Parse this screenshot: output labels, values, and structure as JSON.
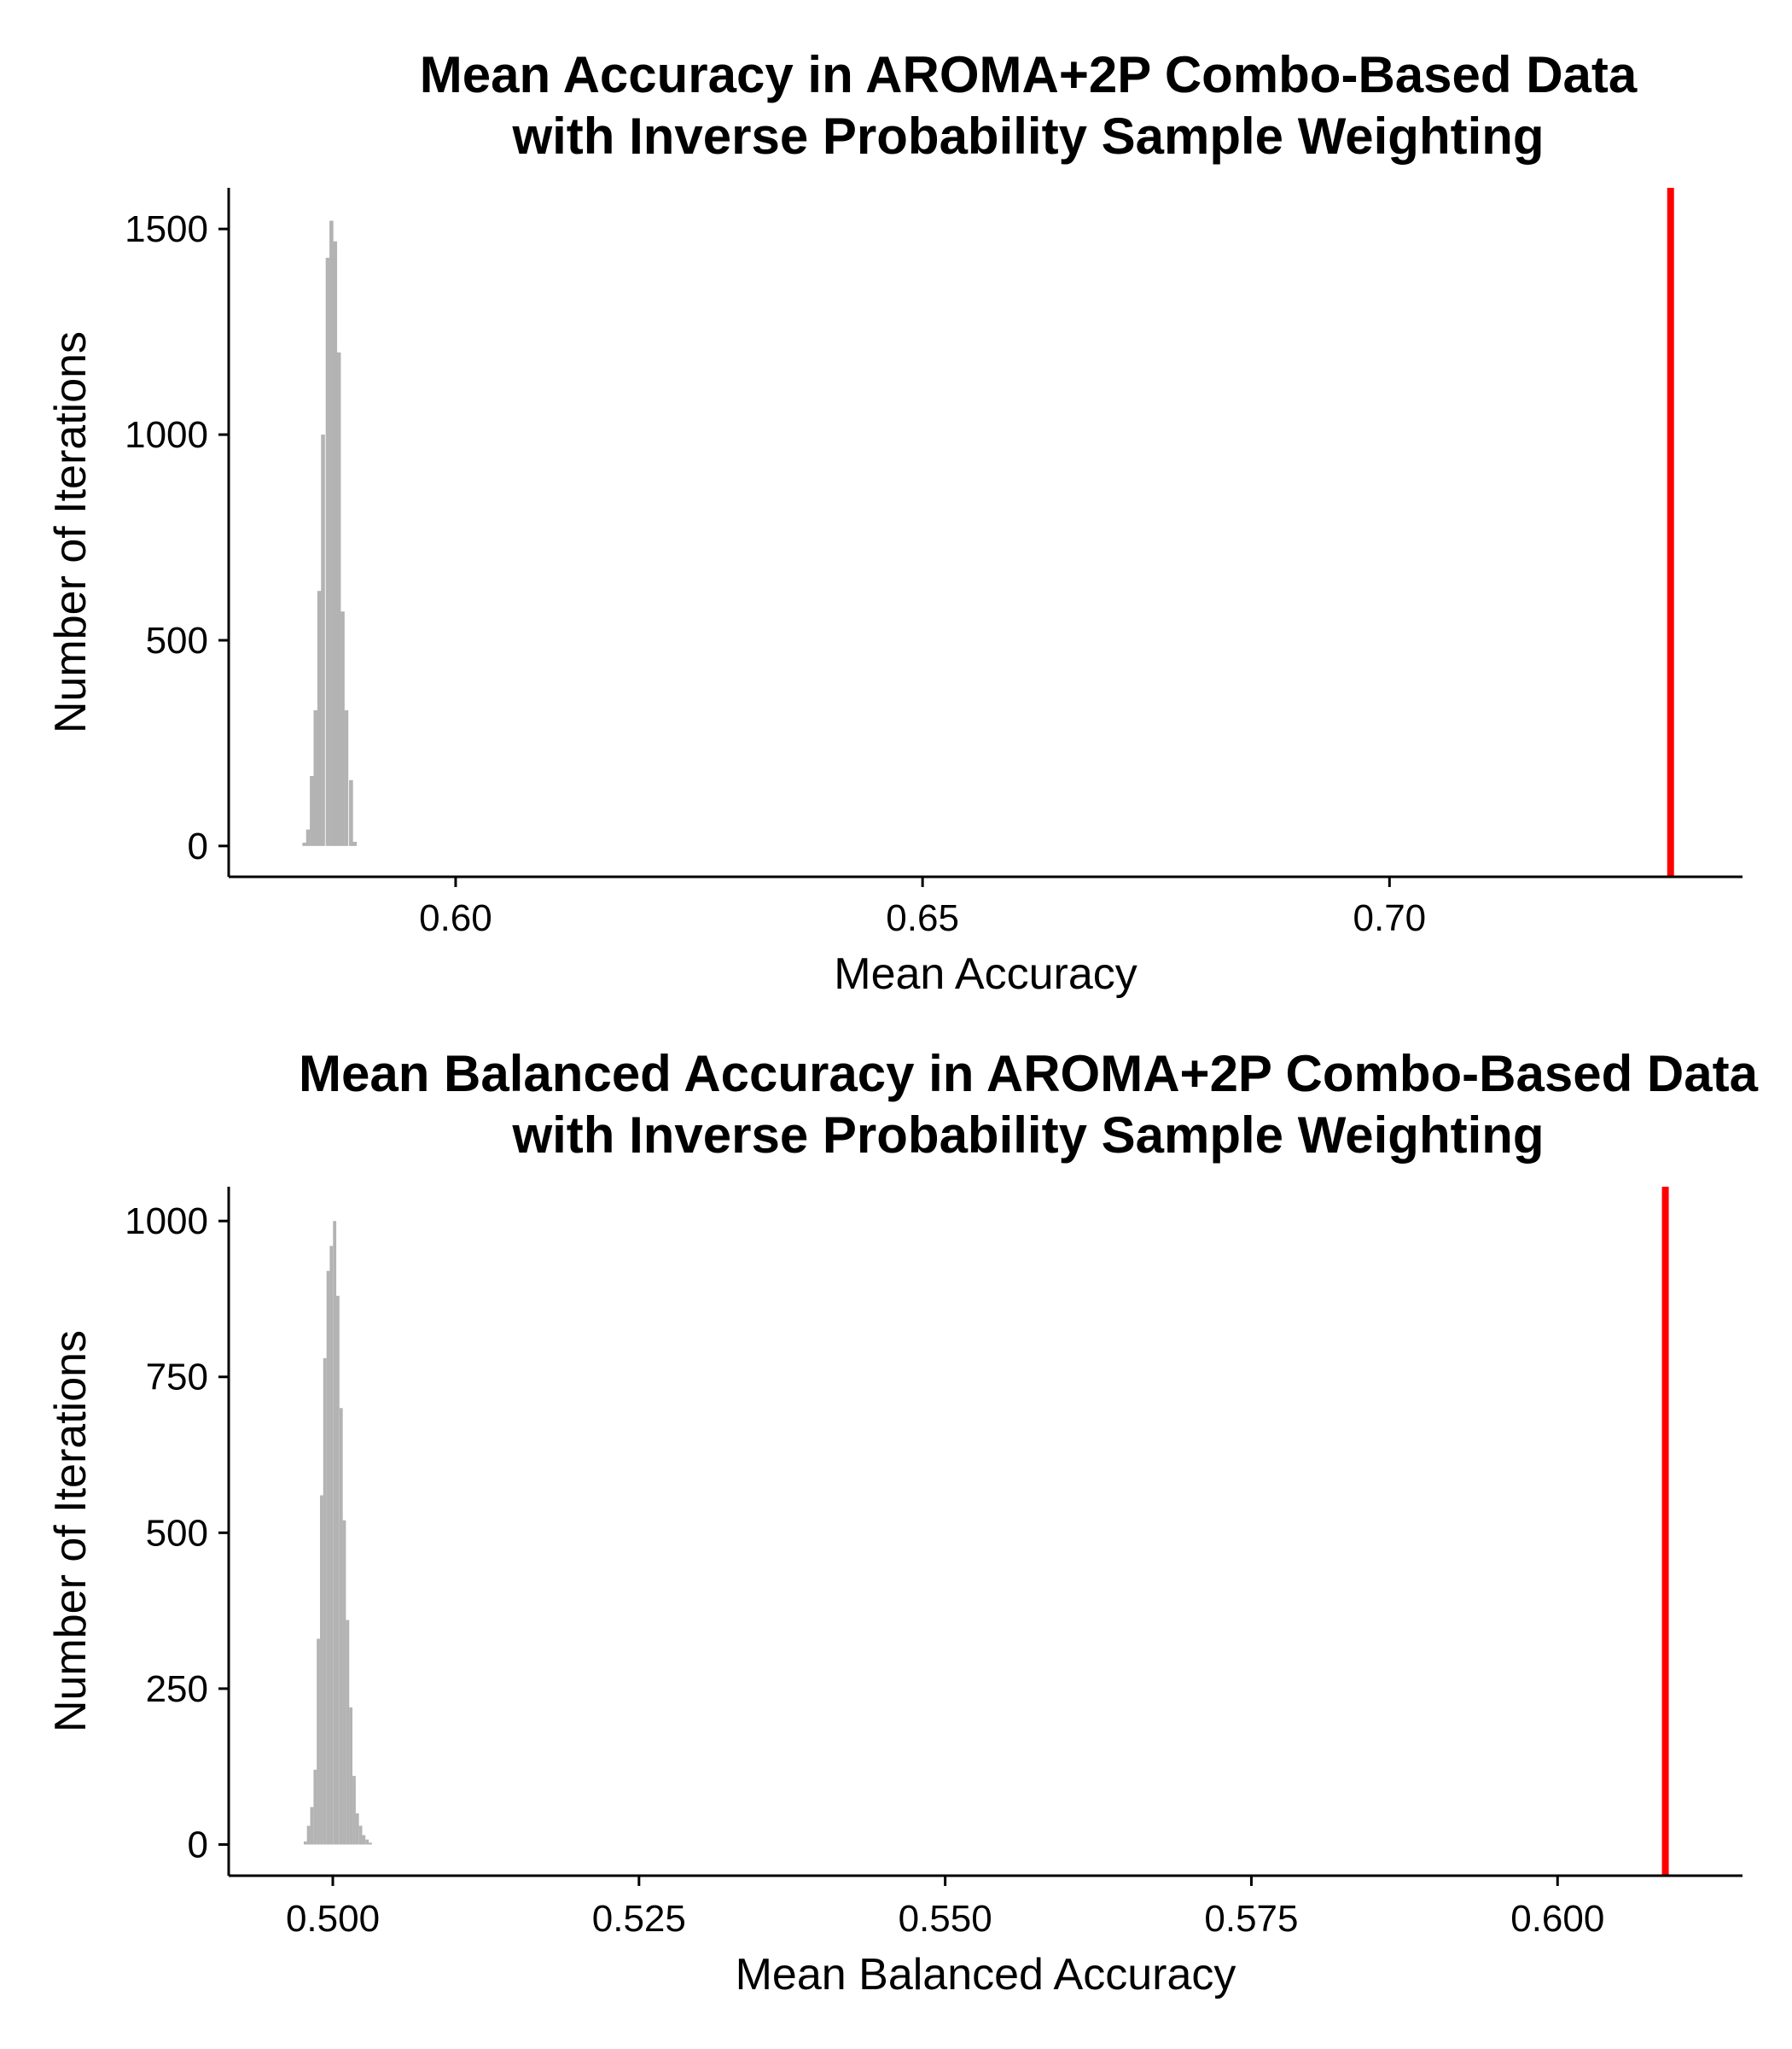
{
  "colors": {
    "bars": "#b3b3b3",
    "observed_line": "#ff0000",
    "axis": "#000000"
  },
  "chart_data": [
    {
      "type": "histogram",
      "title": "Mean Accuracy in AROMA+2P Combo-Based Data\nwith Inverse Probability Sample Weighting",
      "xlabel": "Mean Accuracy",
      "ylabel": "Number of Iterations",
      "xlim": [
        0.5757,
        0.7378
      ],
      "ylim": [
        -75,
        1600
      ],
      "x_ticks": [
        0.6,
        0.65,
        0.7
      ],
      "x_tick_labels": [
        "0.60",
        "0.65",
        "0.70"
      ],
      "y_ticks": [
        0,
        500,
        1000,
        1500
      ],
      "y_tick_labels": [
        "0",
        "500",
        "1000",
        "1500"
      ],
      "bin_width": 0.00042,
      "bins": {
        "x": [
          0.5838,
          0.5842,
          0.5846,
          0.585,
          0.5854,
          0.5858,
          0.5863,
          0.5867,
          0.5871,
          0.5875,
          0.5879,
          0.5883,
          0.5888,
          0.5892
        ],
        "counts": [
          8,
          40,
          170,
          330,
          620,
          1000,
          1430,
          1520,
          1470,
          1200,
          570,
          330,
          160,
          10
        ]
      },
      "observed_value": 0.7301,
      "grid": false
    },
    {
      "type": "histogram",
      "title": "Mean Balanced Accuracy in AROMA+2P Combo-Based Data\nwith Inverse Probability Sample Weighting",
      "xlabel": "Mean Balanced Accuracy",
      "ylabel": "Number of Iterations",
      "xlim": [
        0.4915,
        0.6151
      ],
      "ylim": [
        -50,
        1055
      ],
      "x_ticks": [
        0.5,
        0.525,
        0.55,
        0.575,
        0.6
      ],
      "x_tick_labels": [
        "0.500",
        "0.525",
        "0.550",
        "0.575",
        "0.600"
      ],
      "y_ticks": [
        0,
        250,
        500,
        750,
        1000
      ],
      "y_tick_labels": [
        "0",
        "250",
        "500",
        "750",
        "1000"
      ],
      "bin_width": 0.000265,
      "bins": {
        "x": [
          0.49776,
          0.49802,
          0.49829,
          0.49856,
          0.49882,
          0.49909,
          0.49935,
          0.49962,
          0.49988,
          0.50015,
          0.50041,
          0.50068,
          0.50094,
          0.50121,
          0.50147,
          0.50174,
          0.502,
          0.50227,
          0.50253,
          0.5028,
          0.50306
        ],
        "counts": [
          5,
          30,
          60,
          120,
          330,
          560,
          780,
          920,
          960,
          1000,
          880,
          700,
          520,
          360,
          220,
          110,
          50,
          30,
          15,
          8,
          3
        ]
      },
      "observed_value": 0.6088,
      "grid": false
    }
  ]
}
